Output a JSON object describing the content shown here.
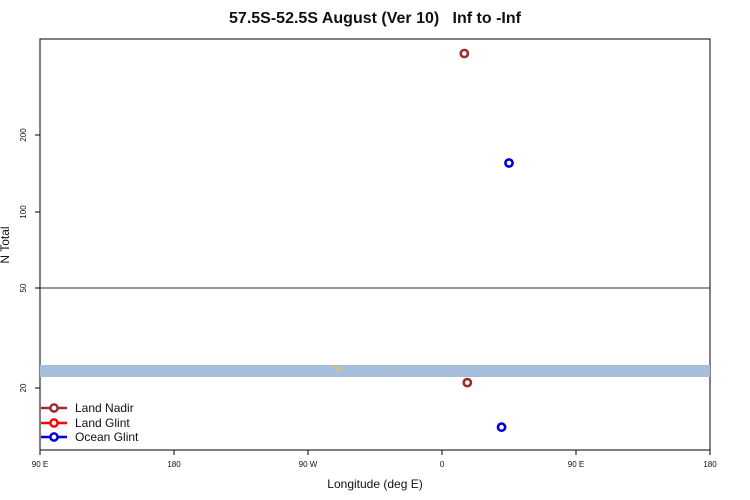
{
  "chart_data": {
    "type": "scatter",
    "title": "57.5S-52.5S August (Ver 10)   Inf to -Inf",
    "xlabel": "Longitude (deg E)",
    "ylabel": "N Total",
    "x_tick_labels": [
      "90 E",
      "180",
      "90 W",
      "0",
      "90 E",
      "180"
    ],
    "y_tick_labels": [
      "20",
      "50",
      "100",
      "200"
    ],
    "y_scale": "log",
    "ylim": [
      12,
      520
    ],
    "reference_line_y": 50,
    "land_band_color": "#a6bddb",
    "series": [
      {
        "name": "Land Nadir",
        "color": "#9b2d30",
        "points": [
          {
            "x": 285,
            "y": 420
          },
          {
            "x": 287,
            "y": 21
          }
        ]
      },
      {
        "name": "Land Glint",
        "color": "#ff0000",
        "points": []
      },
      {
        "name": "Ocean Glint",
        "color": "#0000dd",
        "points": [
          {
            "x": 315,
            "y": 155
          },
          {
            "x": 310,
            "y": 14
          }
        ]
      }
    ],
    "legend_position": "bottom-left"
  }
}
